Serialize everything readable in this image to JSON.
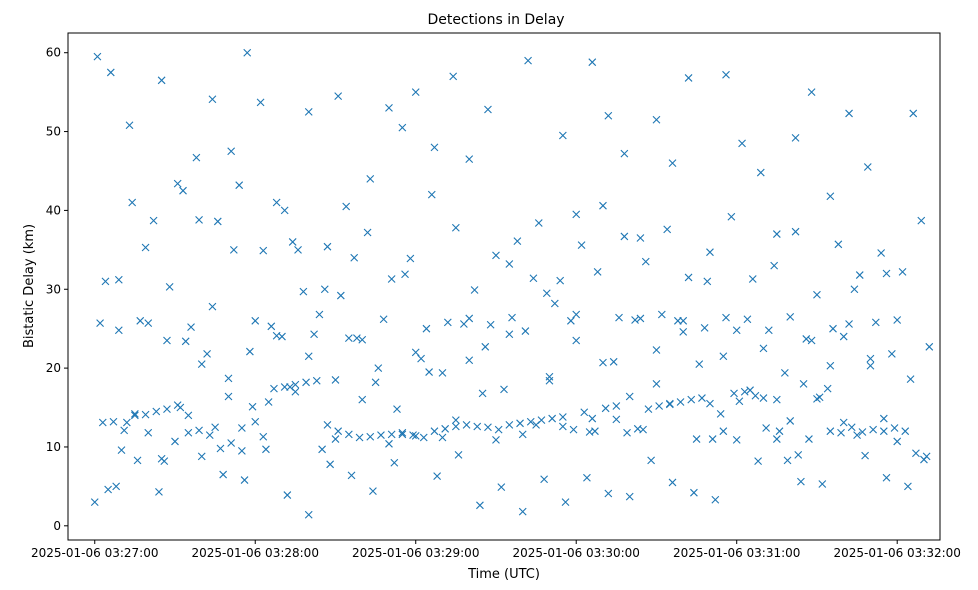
{
  "chart_data": {
    "type": "scatter",
    "title": "Detections in Delay",
    "xlabel": "Time (UTC)",
    "ylabel": "Bistatic Delay (km)",
    "x_ticks": [
      "2025-01-06 03:27:00",
      "2025-01-06 03:28:00",
      "2025-01-06 03:29:00",
      "2025-01-06 03:30:00",
      "2025-01-06 03:31:00",
      "2025-01-06 03:32:00"
    ],
    "y_ticks": [
      "0",
      "10",
      "20",
      "30",
      "40",
      "50",
      "60"
    ],
    "xlim": [
      "2025-01-06 03:26:50",
      "2025-01-06 03:32:16"
    ],
    "ylim": [
      -1.8,
      62.5
    ],
    "grid": false,
    "marker": "x",
    "color": "#1f77b4",
    "series": [
      {
        "x": [
          "2025-01-06 03:27:01",
          "2025-01-06 03:27:06",
          "2025-01-06 03:27:09",
          "2025-01-06 03:27:13",
          "2025-01-06 03:27:19",
          "2025-01-06 03:27:25",
          "2025-01-06 03:27:27",
          "2025-01-06 03:27:33",
          "2025-01-06 03:27:39",
          "2025-01-06 03:27:44",
          "2025-01-06 03:27:51",
          "2025-01-06 03:27:57",
          "2025-01-06 03:28:02",
          "2025-01-06 03:28:08",
          "2025-01-06 03:28:14",
          "2025-01-06 03:28:20",
          "2025-01-06 03:28:26",
          "2025-01-06 03:28:31",
          "2025-01-06 03:28:37",
          "2025-01-06 03:28:43",
          "2025-01-06 03:28:50",
          "2025-01-06 03:28:55",
          "2025-01-06 03:29:00",
          "2025-01-06 03:29:07",
          "2025-01-06 03:29:14",
          "2025-01-06 03:29:20",
          "2025-01-06 03:29:27",
          "2025-01-06 03:29:35",
          "2025-01-06 03:29:42",
          "2025-01-06 03:29:49",
          "2025-01-06 03:29:55",
          "2025-01-06 03:30:00",
          "2025-01-06 03:30:06",
          "2025-01-06 03:30:12",
          "2025-01-06 03:30:18",
          "2025-01-06 03:30:24",
          "2025-01-06 03:30:30",
          "2025-01-06 03:30:36",
          "2025-01-06 03:30:42",
          "2025-01-06 03:30:49",
          "2025-01-06 03:30:56",
          "2025-01-06 03:31:02",
          "2025-01-06 03:31:09",
          "2025-01-06 03:31:15",
          "2025-01-06 03:31:22",
          "2025-01-06 03:31:28",
          "2025-01-06 03:31:35",
          "2025-01-06 03:31:42",
          "2025-01-06 03:31:49",
          "2025-01-06 03:31:56",
          "2025-01-06 03:32:06",
          "2025-01-06 03:27:10",
          "2025-01-06 03:27:15",
          "2025-01-06 03:27:20",
          "2025-01-06 03:27:25",
          "2025-01-06 03:27:30",
          "2025-01-06 03:27:35",
          "2025-01-06 03:27:40",
          "2025-01-06 03:27:45",
          "2025-01-06 03:27:50",
          "2025-01-06 03:27:55",
          "2025-01-06 03:28:00",
          "2025-01-06 03:28:05",
          "2025-01-06 03:28:10",
          "2025-01-06 03:28:15",
          "2025-01-06 03:28:20",
          "2025-01-06 03:28:25",
          "2025-01-06 03:28:30",
          "2025-01-06 03:28:35",
          "2025-01-06 03:28:40",
          "2025-01-06 03:28:45",
          "2025-01-06 03:28:50",
          "2025-01-06 03:28:55",
          "2025-01-06 03:29:00",
          "2025-01-06 03:29:05",
          "2025-01-06 03:29:10",
          "2025-01-06 03:29:15",
          "2025-01-06 03:29:20",
          "2025-01-06 03:29:25",
          "2025-01-06 03:29:30",
          "2025-01-06 03:29:35",
          "2025-01-06 03:29:40",
          "2025-01-06 03:29:45",
          "2025-01-06 03:29:50",
          "2025-01-06 03:29:55",
          "2025-01-06 03:30:00",
          "2025-01-06 03:30:05",
          "2025-01-06 03:30:10",
          "2025-01-06 03:30:15",
          "2025-01-06 03:30:20",
          "2025-01-06 03:30:25",
          "2025-01-06 03:30:30",
          "2025-01-06 03:30:35",
          "2025-01-06 03:30:40",
          "2025-01-06 03:30:45",
          "2025-01-06 03:30:50",
          "2025-01-06 03:30:55",
          "2025-01-06 03:31:00",
          "2025-01-06 03:31:05",
          "2025-01-06 03:31:10",
          "2025-01-06 03:31:15",
          "2025-01-06 03:31:20",
          "2025-01-06 03:31:25",
          "2025-01-06 03:31:30",
          "2025-01-06 03:31:35",
          "2025-01-06 03:31:40",
          "2025-01-06 03:31:45",
          "2025-01-06 03:31:50",
          "2025-01-06 03:31:55",
          "2025-01-06 03:32:00",
          "2025-01-06 03:27:00",
          "2025-01-06 03:27:08",
          "2025-01-06 03:27:16",
          "2025-01-06 03:27:24",
          "2025-01-06 03:27:32",
          "2025-01-06 03:27:40",
          "2025-01-06 03:27:48",
          "2025-01-06 03:27:56",
          "2025-01-06 03:28:04",
          "2025-01-06 03:28:12",
          "2025-01-06 03:28:20",
          "2025-01-06 03:28:28",
          "2025-01-06 03:28:36",
          "2025-01-06 03:28:44",
          "2025-01-06 03:28:52",
          "2025-01-06 03:29:00",
          "2025-01-06 03:29:08",
          "2025-01-06 03:29:16",
          "2025-01-06 03:29:24",
          "2025-01-06 03:29:32",
          "2025-01-06 03:29:40",
          "2025-01-06 03:29:48",
          "2025-01-06 03:29:56",
          "2025-01-06 03:30:04",
          "2025-01-06 03:30:12",
          "2025-01-06 03:30:20",
          "2025-01-06 03:30:28",
          "2025-01-06 03:30:36",
          "2025-01-06 03:30:44",
          "2025-01-06 03:30:52",
          "2025-01-06 03:31:00",
          "2025-01-06 03:31:08",
          "2025-01-06 03:31:16",
          "2025-01-06 03:31:24",
          "2025-01-06 03:31:32",
          "2025-01-06 03:31:40",
          "2025-01-06 03:31:48",
          "2025-01-06 03:31:56",
          "2025-01-06 03:32:04",
          "2025-01-06 03:32:10",
          "2025-01-06 03:27:04",
          "2025-01-06 03:27:12",
          "2025-01-06 03:27:20",
          "2025-01-06 03:27:28",
          "2025-01-06 03:27:36",
          "2025-01-06 03:27:44",
          "2025-01-06 03:27:52",
          "2025-01-06 03:28:00",
          "2025-01-06 03:28:08",
          "2025-01-06 03:28:16",
          "2025-01-06 03:28:24",
          "2025-01-06 03:28:32",
          "2025-01-06 03:28:40",
          "2025-01-06 03:28:48",
          "2025-01-06 03:28:56",
          "2025-01-06 03:29:04",
          "2025-01-06 03:29:12",
          "2025-01-06 03:29:20",
          "2025-01-06 03:29:28",
          "2025-01-06 03:29:36",
          "2025-01-06 03:29:44",
          "2025-01-06 03:29:52",
          "2025-01-06 03:30:00",
          "2025-01-06 03:30:08",
          "2025-01-06 03:30:16",
          "2025-01-06 03:30:24",
          "2025-01-06 03:30:32",
          "2025-01-06 03:30:40",
          "2025-01-06 03:30:48",
          "2025-01-06 03:30:56",
          "2025-01-06 03:31:04",
          "2025-01-06 03:31:12",
          "2025-01-06 03:31:20",
          "2025-01-06 03:31:28",
          "2025-01-06 03:31:36",
          "2025-01-06 03:31:44",
          "2025-01-06 03:31:52",
          "2025-01-06 03:32:00",
          "2025-01-06 03:27:03",
          "2025-01-06 03:27:07",
          "2025-01-06 03:27:11",
          "2025-01-06 03:27:15",
          "2025-01-06 03:27:19",
          "2025-01-06 03:27:23",
          "2025-01-06 03:27:27",
          "2025-01-06 03:27:31",
          "2025-01-06 03:27:35",
          "2025-01-06 03:27:39",
          "2025-01-06 03:27:43",
          "2025-01-06 03:27:47",
          "2025-01-06 03:27:51",
          "2025-01-06 03:27:55",
          "2025-01-06 03:27:59",
          "2025-01-06 03:28:03",
          "2025-01-06 03:28:07",
          "2025-01-06 03:28:11",
          "2025-01-06 03:28:15",
          "2025-01-06 03:28:19",
          "2025-01-06 03:28:23",
          "2025-01-06 03:28:27",
          "2025-01-06 03:28:31",
          "2025-01-06 03:28:35",
          "2025-01-06 03:28:39",
          "2025-01-06 03:28:43",
          "2025-01-06 03:28:47",
          "2025-01-06 03:28:51",
          "2025-01-06 03:28:55",
          "2025-01-06 03:28:59",
          "2025-01-06 03:29:03",
          "2025-01-06 03:29:07",
          "2025-01-06 03:29:11",
          "2025-01-06 03:29:15",
          "2025-01-06 03:29:19",
          "2025-01-06 03:29:23",
          "2025-01-06 03:29:27",
          "2025-01-06 03:29:31",
          "2025-01-06 03:29:35",
          "2025-01-06 03:29:39",
          "2025-01-06 03:29:43",
          "2025-01-06 03:29:47",
          "2025-01-06 03:29:51",
          "2025-01-06 03:29:55",
          "2025-01-06 03:29:59",
          "2025-01-06 03:30:03",
          "2025-01-06 03:30:07",
          "2025-01-06 03:30:11",
          "2025-01-06 03:30:15",
          "2025-01-06 03:30:19",
          "2025-01-06 03:30:23",
          "2025-01-06 03:30:27",
          "2025-01-06 03:30:31",
          "2025-01-06 03:30:35",
          "2025-01-06 03:30:39",
          "2025-01-06 03:30:43",
          "2025-01-06 03:30:47",
          "2025-01-06 03:30:51",
          "2025-01-06 03:30:55",
          "2025-01-06 03:30:59",
          "2025-01-06 03:31:03",
          "2025-01-06 03:31:07",
          "2025-01-06 03:31:11",
          "2025-01-06 03:31:15",
          "2025-01-06 03:31:19",
          "2025-01-06 03:31:23",
          "2025-01-06 03:31:27",
          "2025-01-06 03:31:31",
          "2025-01-06 03:31:35",
          "2025-01-06 03:31:39",
          "2025-01-06 03:31:43",
          "2025-01-06 03:31:47",
          "2025-01-06 03:31:51",
          "2025-01-06 03:31:55",
          "2025-01-06 03:31:59",
          "2025-01-06 03:32:03",
          "2025-01-06 03:32:07",
          "2025-01-06 03:32:11",
          "2025-01-06 03:27:02",
          "2025-01-06 03:27:09",
          "2025-01-06 03:27:17",
          "2025-01-06 03:27:26",
          "2025-01-06 03:27:34",
          "2025-01-06 03:27:42",
          "2025-01-06 03:27:50",
          "2025-01-06 03:27:58",
          "2025-01-06 03:28:06",
          "2025-01-06 03:28:13",
          "2025-01-06 03:28:22",
          "2025-01-06 03:28:30",
          "2025-01-06 03:28:38",
          "2025-01-06 03:28:46",
          "2025-01-06 03:28:53",
          "2025-01-06 03:29:02",
          "2025-01-06 03:29:10",
          "2025-01-06 03:29:18",
          "2025-01-06 03:29:26",
          "2025-01-06 03:29:33",
          "2025-01-06 03:29:41",
          "2025-01-06 03:29:50",
          "2025-01-06 03:29:58",
          "2025-01-06 03:30:06",
          "2025-01-06 03:30:14",
          "2025-01-06 03:30:22",
          "2025-01-06 03:30:30",
          "2025-01-06 03:30:38",
          "2025-01-06 03:30:46",
          "2025-01-06 03:30:54",
          "2025-01-06 03:31:01",
          "2025-01-06 03:31:10",
          "2025-01-06 03:31:18",
          "2025-01-06 03:31:26",
          "2025-01-06 03:31:34",
          "2025-01-06 03:31:42",
          "2025-01-06 03:31:50",
          "2025-01-06 03:31:58",
          "2025-01-06 03:32:05",
          "2025-01-06 03:32:12",
          "2025-01-06 03:27:05",
          "2025-01-06 03:27:14",
          "2025-01-06 03:27:22",
          "2025-01-06 03:27:31",
          "2025-01-06 03:27:38",
          "2025-01-06 03:27:46",
          "2025-01-06 03:27:54",
          "2025-01-06 03:28:03",
          "2025-01-06 03:28:11",
          "2025-01-06 03:28:18",
          "2025-01-06 03:28:27",
          "2025-01-06 03:28:34",
          "2025-01-06 03:28:42",
          "2025-01-06 03:28:51",
          "2025-01-06 03:28:58",
          "2025-01-06 03:29:06",
          "2025-01-06 03:29:15",
          "2025-01-06 03:29:22",
          "2025-01-06 03:29:30",
          "2025-01-06 03:29:38",
          "2025-01-06 03:29:46",
          "2025-01-06 03:29:54",
          "2025-01-06 03:30:02",
          "2025-01-06 03:30:10",
          "2025-01-06 03:30:18",
          "2025-01-06 03:30:26",
          "2025-01-06 03:30:34",
          "2025-01-06 03:30:42",
          "2025-01-06 03:30:50",
          "2025-01-06 03:30:58",
          "2025-01-06 03:31:06",
          "2025-01-06 03:31:14",
          "2025-01-06 03:31:22",
          "2025-01-06 03:31:30",
          "2025-01-06 03:31:38",
          "2025-01-06 03:31:46",
          "2025-01-06 03:31:54",
          "2025-01-06 03:32:02",
          "2025-01-06 03:32:09"
        ],
        "y": [
          59.5,
          57.5,
          31.2,
          50.8,
          35.3,
          56.5,
          23.5,
          42.5,
          38.8,
          54.1,
          47.5,
          60.0,
          53.7,
          41.0,
          36.0,
          52.5,
          30.0,
          54.5,
          34.0,
          44.0,
          53.0,
          50.5,
          55.0,
          48.0,
          57.0,
          46.5,
          52.8,
          33.2,
          59.0,
          29.5,
          49.5,
          39.5,
          58.8,
          52.0,
          47.2,
          36.5,
          51.5,
          46.0,
          56.8,
          31.0,
          57.2,
          48.5,
          44.8,
          37.0,
          49.2,
          55.0,
          41.8,
          52.3,
          45.5,
          32.0,
          52.3,
          9.6,
          14.2,
          11.8,
          8.5,
          10.7,
          14.0,
          20.5,
          12.5,
          18.7,
          9.5,
          13.2,
          15.7,
          24.0,
          17.0,
          21.5,
          9.7,
          11.0,
          23.8,
          16.0,
          18.2,
          10.4,
          11.6,
          22.0,
          19.5,
          11.2,
          13.4,
          21.0,
          16.8,
          10.9,
          24.3,
          11.6,
          12.8,
          18.4,
          12.6,
          23.5,
          11.9,
          20.7,
          13.5,
          16.4,
          12.2,
          22.3,
          15.4,
          24.6,
          11.0,
          15.5,
          21.5,
          24.8,
          17.2,
          16.2,
          11.0,
          13.3,
          18.0,
          16.1,
          20.3,
          24.0,
          11.5,
          21.2,
          13.6,
          10.7,
          3.0,
          5.0,
          8.3,
          4.3,
          15.0,
          8.8,
          6.5,
          5.8,
          9.7,
          3.9,
          1.4,
          7.8,
          6.4,
          4.4,
          8.0,
          11.4,
          6.3,
          9.0,
          2.6,
          4.9,
          1.8,
          5.9,
          3.0,
          6.1,
          4.1,
          3.7,
          8.3,
          5.5,
          4.2,
          3.3,
          10.9,
          8.2,
          12.0,
          5.6,
          5.3,
          13.1,
          8.9,
          6.1,
          5.0,
          8.4,
          31.0,
          13.1,
          25.7,
          30.3,
          25.2,
          27.8,
          35.0,
          26.0,
          24.1,
          35.0,
          26.8,
          29.2,
          23.6,
          26.2,
          31.9,
          25.0,
          25.8,
          26.3,
          25.5,
          26.4,
          31.4,
          28.2,
          26.8,
          32.2,
          26.4,
          26.3,
          26.8,
          26.0,
          25.1,
          26.4,
          26.2,
          24.8,
          26.5,
          23.5,
          25.0,
          30.0,
          25.8,
          26.1,
          13.1,
          13.2,
          12.1,
          14.0,
          14.1,
          14.5,
          14.8,
          15.3,
          11.8,
          12.1,
          11.5,
          9.8,
          10.5,
          12.4,
          15.1,
          11.3,
          17.4,
          17.6,
          17.9,
          18.2,
          18.4,
          12.8,
          12.0,
          11.6,
          11.2,
          11.3,
          11.5,
          11.6,
          11.8,
          11.5,
          11.2,
          12.0,
          12.3,
          12.6,
          12.8,
          12.6,
          12.5,
          12.2,
          12.8,
          13.0,
          13.2,
          13.4,
          13.6,
          13.8,
          12.2,
          14.4,
          12.0,
          14.9,
          15.2,
          11.8,
          12.3,
          14.8,
          15.2,
          15.5,
          15.7,
          16.0,
          16.2,
          11.0,
          12.0,
          16.8,
          17.0,
          16.5,
          12.4,
          16.0,
          8.3,
          9.0,
          11.0,
          16.3,
          12.0,
          11.8,
          12.5,
          11.9,
          12.2,
          12.0,
          12.4,
          12.0,
          9.2,
          8.8,
          25.7,
          24.8,
          26.0,
          8.2,
          23.4,
          21.8,
          16.4,
          22.1,
          25.3,
          17.6,
          24.3,
          18.5,
          23.8,
          20.0,
          14.8,
          21.2,
          19.4,
          25.6,
          22.7,
          17.3,
          24.7,
          18.9,
          26.0,
          13.6,
          20.8,
          26.1,
          18.0,
          26.0,
          20.5,
          14.2,
          15.8,
          22.5,
          19.4,
          23.7,
          17.4,
          25.6,
          20.3,
          21.8,
          18.6,
          22.7,
          4.6,
          41.0,
          38.7,
          43.4,
          46.7,
          38.6,
          43.2,
          34.9,
          40.0,
          29.7,
          35.4,
          40.5,
          37.2,
          31.3,
          33.9,
          42.0,
          37.8,
          29.9,
          34.3,
          36.1,
          38.4,
          31.1,
          35.6,
          40.6,
          36.7,
          33.5,
          37.6,
          31.5,
          34.7,
          39.2,
          31.3,
          33.0,
          37.3,
          29.3,
          35.7,
          31.8,
          34.6,
          32.2,
          38.7
        ]
      }
    ]
  }
}
